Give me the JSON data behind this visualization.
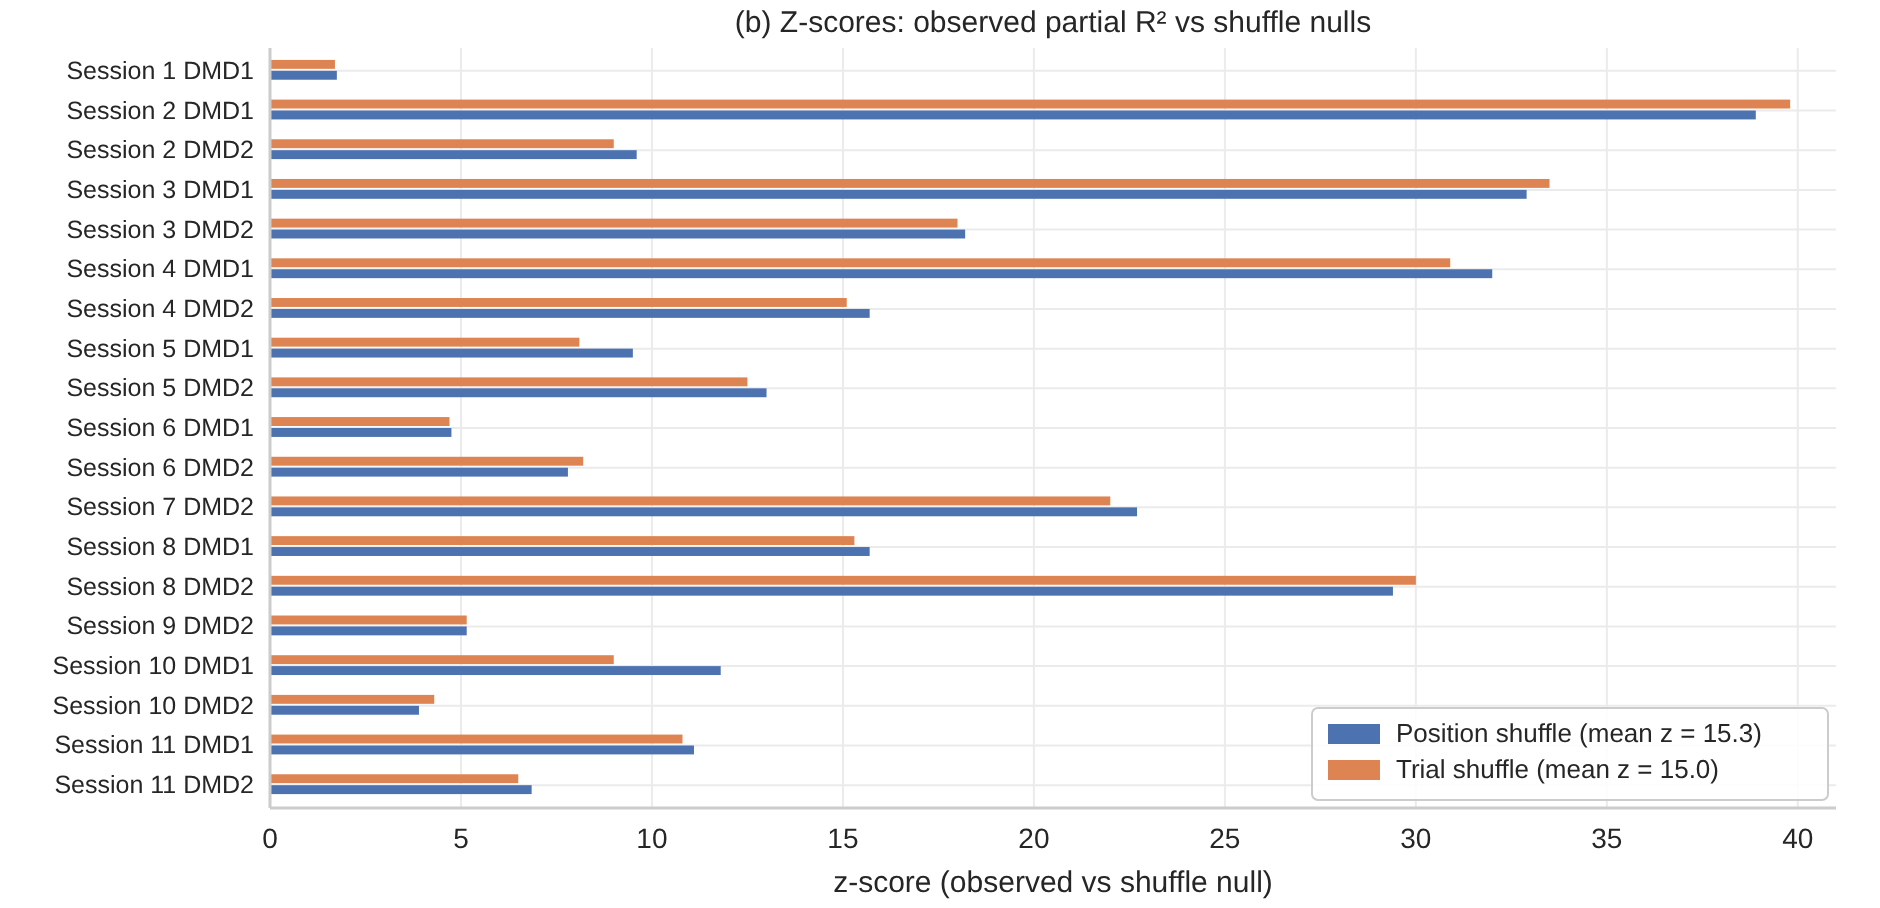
{
  "chart_data": {
    "type": "bar",
    "orientation": "horizontal",
    "title": "(b) Z-scores: observed partial R² vs shuffle nulls",
    "xlabel": "z-score (observed vs shuffle null)",
    "categories": [
      "Session 1 DMD1",
      "Session 2 DMD1",
      "Session 2 DMD2",
      "Session 3 DMD1",
      "Session 3 DMD2",
      "Session 4 DMD1",
      "Session 4 DMD2",
      "Session 5 DMD1",
      "Session 5 DMD2",
      "Session 6 DMD1",
      "Session 6 DMD2",
      "Session 7 DMD2",
      "Session 8 DMD1",
      "Session 8 DMD2",
      "Session 9 DMD2",
      "Session 10 DMD1",
      "Session 10 DMD2",
      "Session 11 DMD1",
      "Session 11 DMD2"
    ],
    "series": [
      {
        "name": "Position shuffle (mean z = 15.3)",
        "color": "#4c72b0",
        "values": [
          1.75,
          38.9,
          9.6,
          32.9,
          18.2,
          32.0,
          15.7,
          9.5,
          13.0,
          4.75,
          7.8,
          22.7,
          15.7,
          29.4,
          5.15,
          11.8,
          3.9,
          11.1,
          6.85
        ]
      },
      {
        "name": "Trial shuffle (mean z = 15.0)",
        "color": "#dd8452",
        "values": [
          1.7,
          39.8,
          9.0,
          33.5,
          18.0,
          30.9,
          15.1,
          8.1,
          12.5,
          4.7,
          8.2,
          22.0,
          15.3,
          30.0,
          5.15,
          9.0,
          4.3,
          10.8,
          6.5
        ]
      }
    ],
    "xlim": [
      0,
      41
    ],
    "xticks": [
      0,
      5,
      10,
      15,
      20,
      25,
      30,
      35,
      40
    ],
    "grid": true,
    "legend": "bottom right"
  }
}
